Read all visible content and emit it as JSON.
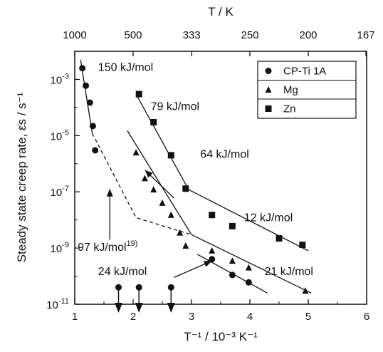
{
  "chart_data": {
    "type": "scatter",
    "x_axis": {
      "label": "T⁻¹ / 10⁻³ K⁻¹",
      "lim": [
        1,
        6
      ],
      "ticks": [
        1,
        2,
        3,
        4,
        5,
        6
      ],
      "tick_labels": [
        "1",
        "2",
        "3",
        "4",
        "5",
        "6"
      ]
    },
    "top_axis": {
      "label": "T / K",
      "ticks": [
        1000,
        500,
        333,
        250,
        200,
        167
      ],
      "tick_labels": [
        "1000",
        "500",
        "333",
        "250",
        "200",
        "167"
      ]
    },
    "y_axis": {
      "label": "Steady state creep rate, ε̇s / s⁻¹",
      "scale": "log",
      "lim": [
        1e-11,
        0.01
      ],
      "ticks": [
        1e-11,
        1e-09,
        1e-07,
        1e-05,
        0.001
      ],
      "tick_labels": [
        "10-11",
        "10-9",
        "10-7",
        "10-5",
        "10-3"
      ]
    },
    "grid": false,
    "legend": {
      "position": "top-right",
      "entries": [
        "CP-Ti 1A",
        "Mg",
        "Zn"
      ]
    },
    "series": [
      {
        "name": "CP-Ti 1A",
        "marker": "circle",
        "points": [
          [
            1.13,
            0.0025
          ],
          [
            1.19,
            0.0006
          ],
          [
            1.26,
            0.00015
          ],
          [
            1.31,
            2.2e-05
          ],
          [
            1.35,
            3e-06
          ],
          [
            3.35,
            4e-10
          ],
          [
            3.7,
            1.1e-10
          ],
          [
            3.98,
            6e-11
          ]
        ]
      },
      {
        "name": "Mg",
        "marker": "triangle",
        "points": [
          [
            2.05,
            2.5e-06
          ],
          [
            2.2,
            3e-07
          ],
          [
            2.35,
            1.2e-07
          ],
          [
            2.5,
            4e-08
          ],
          [
            2.65,
            1.5e-08
          ],
          [
            2.8,
            3.5e-09
          ],
          [
            2.9,
            1.2e-09
          ],
          [
            3.35,
            8e-10
          ],
          [
            3.7,
            3.5e-10
          ],
          [
            3.98,
            2e-10
          ],
          [
            4.95,
            3e-11
          ]
        ]
      },
      {
        "name": "Zn",
        "marker": "square",
        "points": [
          [
            2.1,
            0.0003
          ],
          [
            2.35,
            3e-05
          ],
          [
            2.65,
            2e-06
          ],
          [
            2.9,
            1.3e-07
          ],
          [
            3.35,
            1.5e-08
          ],
          [
            3.7,
            6e-09
          ],
          [
            4.5,
            2.2e-09
          ],
          [
            4.9,
            1.3e-09
          ]
        ]
      }
    ],
    "upper_limit_markers": {
      "marker": "circle",
      "points": [
        [
          1.75,
          4e-11
        ],
        [
          2.1,
          4e-11
        ],
        [
          2.65,
          4e-11
        ]
      ]
    },
    "fit_lines": [
      {
        "points": [
          [
            1.1,
            0.005
          ],
          [
            1.3,
            1.2e-05
          ]
        ]
      },
      {
        "points": [
          [
            1.3,
            1.2e-05
          ],
          [
            2.05,
            1.2e-08
          ],
          [
            3.0,
            3e-09
          ]
        ],
        "style": "dashed"
      },
      {
        "points": [
          [
            2.05,
            0.0003
          ],
          [
            2.95,
            1.2e-07
          ]
        ]
      },
      {
        "points": [
          [
            2.95,
            1.2e-07
          ],
          [
            5.0,
            8e-10
          ]
        ]
      },
      {
        "points": [
          [
            1.9,
            1.5e-05
          ],
          [
            3.0,
            3e-09
          ]
        ]
      },
      {
        "points": [
          [
            3.0,
            3e-09
          ],
          [
            5.05,
            2.5e-11
          ]
        ]
      },
      {
        "points": [
          [
            3.1,
            6e-10
          ],
          [
            4.3,
            2.5e-11
          ]
        ]
      }
    ],
    "annotations": [
      {
        "text": "150 kJ/mol",
        "x": 1.4,
        "y": 0.002
      },
      {
        "text": "79 kJ/mol",
        "x": 2.3,
        "y": 8e-05
      },
      {
        "text": "64 kJ/mol",
        "x": 3.15,
        "y": 1.6e-06
      },
      {
        "text": "12 kJ/mol",
        "x": 3.9,
        "y": 9e-09
      },
      {
        "text": "97 kJ/mol",
        "superscript": "19)",
        "x": 1.05,
        "y": 8e-10
      },
      {
        "text": "24 kJ/mol",
        "x": 1.4,
        "y": 1.1e-10
      },
      {
        "text": "21 kJ/mol",
        "x": 4.25,
        "y": 1.1e-10
      }
    ],
    "arrows": [
      {
        "from": [
          1.6,
          2e-09
        ],
        "to": [
          1.6,
          1.3e-07
        ]
      },
      {
        "from": [
          2.7,
          6e-08
        ],
        "to": [
          2.2,
          6e-07
        ]
      },
      {
        "from": [
          2.7,
          9e-11
        ],
        "to": [
          3.35,
          3.5e-10
        ]
      }
    ]
  }
}
